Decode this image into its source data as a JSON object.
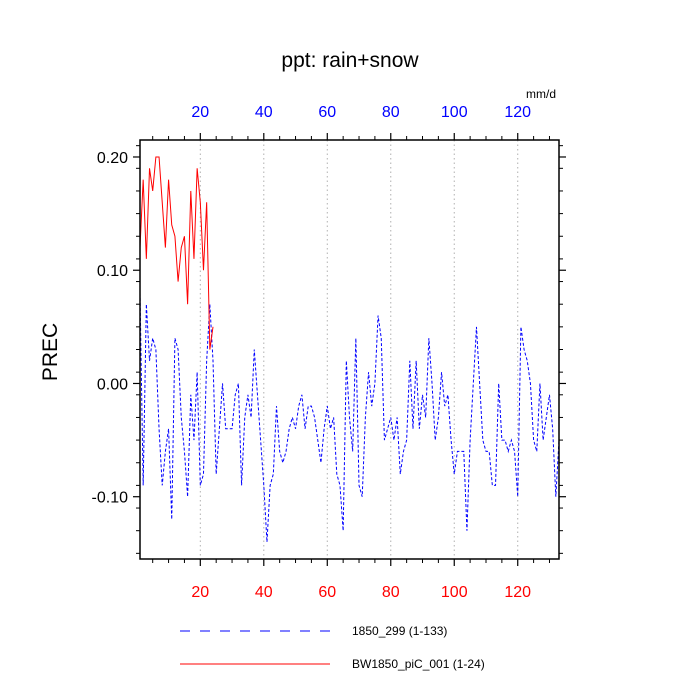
{
  "chart_data": {
    "type": "line",
    "title": "ppt: rain+snow",
    "ylabel": "PREC",
    "top_axis_units": "mm/d",
    "xlim": [
      1,
      133
    ],
    "ylim": [
      -0.155,
      0.215
    ],
    "y_ticks": [
      0.2,
      0.1,
      0.0,
      -0.1
    ],
    "y_tick_labels": [
      "0.20",
      "0.10",
      "0.00",
      "-0.10"
    ],
    "x_ticks_bottom": [
      20,
      40,
      60,
      80,
      100,
      120
    ],
    "x_tick_labels_bottom": [
      "20",
      "40",
      "60",
      "80",
      "100",
      "120"
    ],
    "x_ticks_top": [
      20,
      40,
      60,
      80,
      100,
      120
    ],
    "x_tick_labels_top": [
      "20",
      "40",
      "60",
      "80",
      "100",
      "120"
    ],
    "vertical_grid": true,
    "grid_style": "dotted",
    "legend_placement": "bottom",
    "colors": {
      "series_1850": "#0000ff",
      "series_bw": "#ff0000",
      "bottom_ticks": "#ff0000",
      "top_ticks": "#0000ff"
    },
    "series": [
      {
        "name": "1850_299 (1-133)",
        "color": "#0000ff",
        "dash": "dashed",
        "values": [
          0.08,
          -0.09,
          0.07,
          0.02,
          0.04,
          0.03,
          -0.04,
          -0.09,
          -0.06,
          -0.04,
          -0.12,
          0.04,
          0.03,
          -0.03,
          -0.06,
          -0.1,
          -0.01,
          -0.05,
          0.01,
          -0.09,
          -0.08,
          0.02,
          0.07,
          0.02,
          -0.08,
          -0.04,
          0.0,
          -0.04,
          -0.04,
          -0.04,
          -0.01,
          0.0,
          -0.09,
          -0.03,
          -0.01,
          -0.03,
          0.03,
          -0.01,
          -0.05,
          -0.09,
          -0.14,
          -0.09,
          -0.08,
          -0.02,
          -0.06,
          -0.07,
          -0.06,
          -0.04,
          -0.03,
          -0.04,
          -0.02,
          -0.01,
          -0.04,
          -0.02,
          -0.02,
          -0.03,
          -0.05,
          -0.07,
          -0.04,
          -0.02,
          -0.04,
          -0.03,
          -0.08,
          -0.09,
          -0.13,
          0.02,
          -0.03,
          -0.06,
          0.04,
          -0.09,
          -0.1,
          -0.03,
          0.01,
          -0.02,
          0.0,
          0.06,
          0.04,
          -0.05,
          -0.04,
          -0.03,
          -0.05,
          -0.03,
          -0.08,
          -0.06,
          -0.05,
          0.02,
          -0.04,
          0.02,
          -0.04,
          -0.01,
          -0.03,
          0.04,
          0.0,
          -0.05,
          -0.03,
          0.01,
          -0.02,
          -0.01,
          -0.05,
          -0.08,
          -0.06,
          -0.06,
          -0.06,
          -0.13,
          -0.05,
          0.0,
          0.05,
          0.0,
          -0.05,
          -0.06,
          -0.06,
          -0.09,
          -0.09,
          0.0,
          -0.05,
          -0.05,
          -0.06,
          -0.05,
          -0.06,
          -0.1,
          0.05,
          0.03,
          0.02,
          0.0,
          -0.05,
          -0.06,
          0.0,
          -0.05,
          -0.03,
          -0.01,
          -0.04,
          -0.1,
          -0.05
        ]
      },
      {
        "name": "BW1850_piC_001 (1-24)",
        "color": "#ff0000",
        "dash": "solid",
        "values": [
          0.12,
          0.18,
          0.11,
          0.19,
          0.17,
          0.2,
          0.2,
          0.16,
          0.12,
          0.18,
          0.14,
          0.13,
          0.09,
          0.12,
          0.13,
          0.07,
          0.17,
          0.11,
          0.19,
          0.16,
          0.1,
          0.16,
          0.03,
          0.05
        ]
      }
    ]
  }
}
